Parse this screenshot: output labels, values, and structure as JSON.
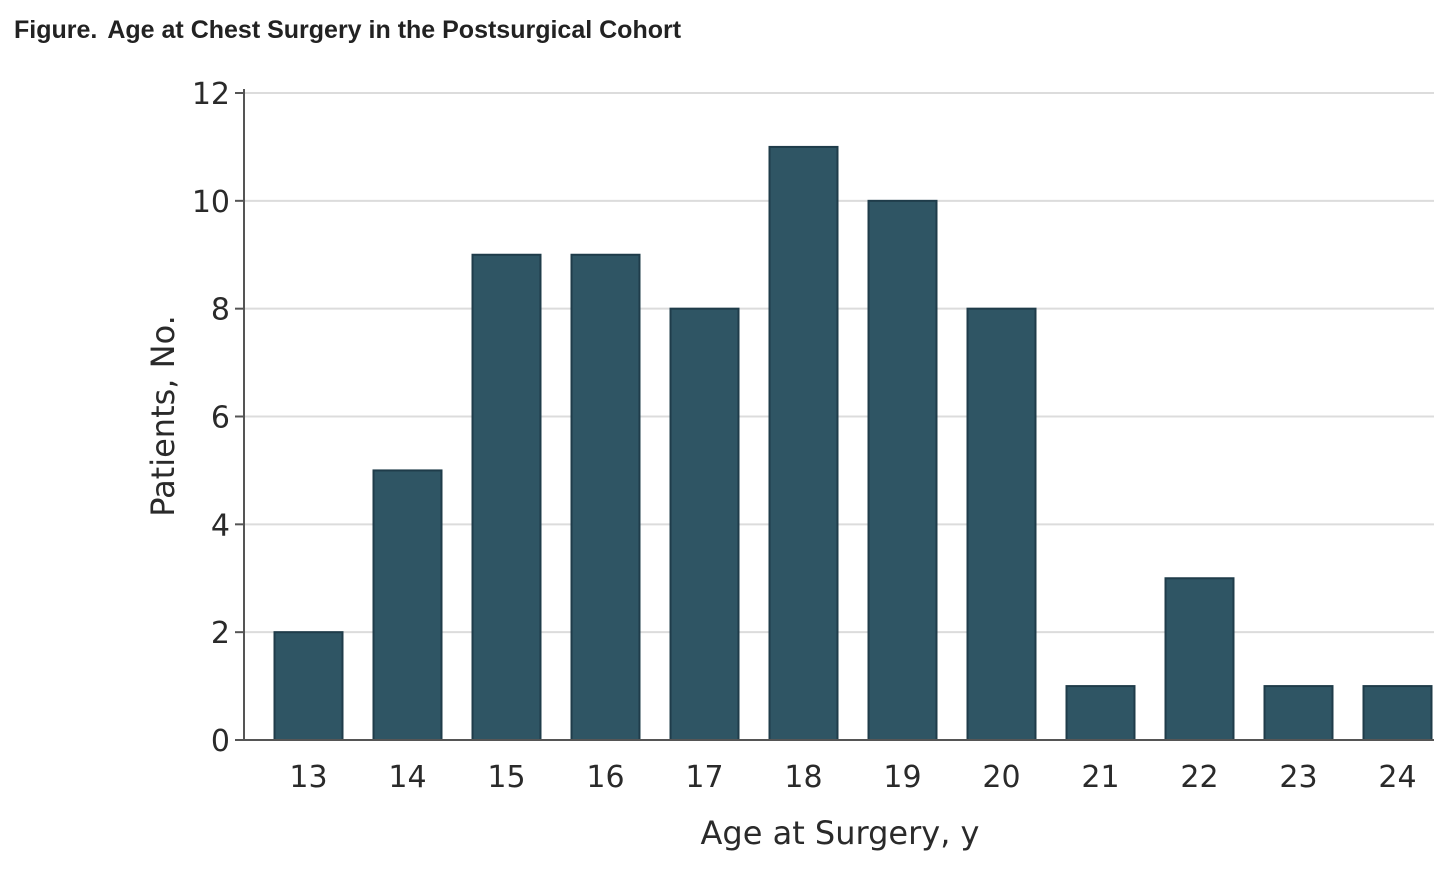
{
  "figure": {
    "label": "Figure.",
    "title": "Age at Chest Surgery in the Postsurgical Cohort"
  },
  "colors": {
    "bar": "#2f5564",
    "grid": "#dcdcdc",
    "axis": "#555555"
  },
  "chart_data": {
    "type": "bar",
    "categories": [
      "13",
      "14",
      "15",
      "16",
      "17",
      "18",
      "19",
      "20",
      "21",
      "22",
      "23",
      "24"
    ],
    "values": [
      2,
      5,
      9,
      9,
      8,
      11,
      10,
      8,
      1,
      3,
      1,
      1
    ],
    "xlabel": "Age at Surgery, y",
    "ylabel": "Patients, No.",
    "ylim": [
      0,
      12
    ],
    "yticks": [
      "0",
      "2",
      "4",
      "6",
      "8",
      "10",
      "12"
    ],
    "grid": true,
    "legend": null
  }
}
